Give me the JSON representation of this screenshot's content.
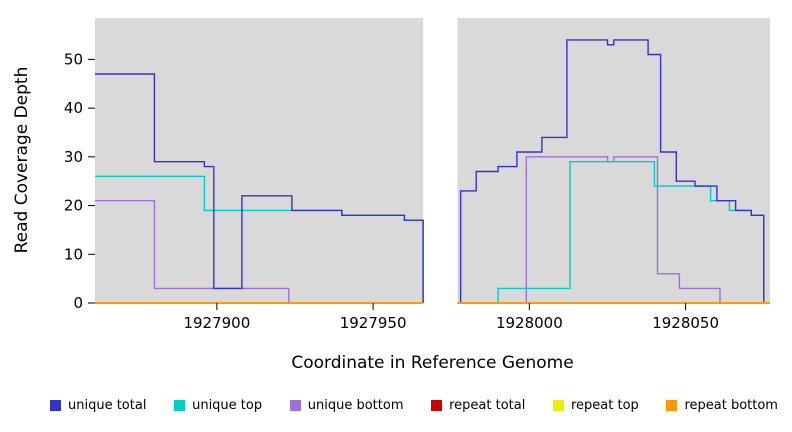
{
  "chart_data": {
    "type": "line",
    "subtype": "step-coverage",
    "title": "",
    "xlabel": "Coordinate in Reference Genome",
    "ylabel": "Read Coverage Depth",
    "x_range": [
      1927861,
      1928077
    ],
    "y_max": 58.5,
    "x_ticks": [
      1927900,
      1927950,
      1928000,
      1928050
    ],
    "y_ticks": [
      0,
      10,
      20,
      30,
      40,
      50
    ],
    "gap_x": [
      1927966,
      1927977
    ],
    "panel_color": "#d9d9d9",
    "grid": false,
    "legend_position": "bottom",
    "series": [
      {
        "key": "unique-bottom",
        "name": "unique bottom",
        "color": "#a070d8",
        "segments": [
          [
            [
              1927861,
              21
            ],
            [
              1927880,
              3
            ],
            [
              1927923,
              0
            ],
            [
              1927966,
              0
            ]
          ],
          [
            [
              1927977,
              0
            ],
            [
              1927999,
              30
            ],
            [
              1928025,
              29
            ],
            [
              1928027,
              30
            ],
            [
              1928041,
              6
            ],
            [
              1928048,
              3
            ],
            [
              1928061,
              0
            ],
            [
              1928075,
              0
            ]
          ]
        ]
      },
      {
        "key": "unique-top",
        "name": "unique top",
        "color": "#00cccc",
        "segments": [
          [
            [
              1927861,
              26
            ],
            [
              1927896,
              19
            ],
            [
              1927940,
              18
            ],
            [
              1927960,
              17
            ],
            [
              1927966,
              0
            ]
          ],
          [
            [
              1927977,
              0
            ],
            [
              1927990,
              3
            ],
            [
              1928013,
              29
            ],
            [
              1928040,
              24
            ],
            [
              1928058,
              21
            ],
            [
              1928064,
              19
            ],
            [
              1928071,
              18
            ],
            [
              1928075,
              0
            ]
          ]
        ]
      },
      {
        "key": "unique-total",
        "name": "unique total",
        "color": "#3333cc",
        "segments": [
          [
            [
              1927861,
              47
            ],
            [
              1927880,
              29
            ],
            [
              1927896,
              28
            ],
            [
              1927899,
              3
            ],
            [
              1927908,
              22
            ],
            [
              1927924,
              19
            ],
            [
              1927940,
              18
            ],
            [
              1927960,
              17
            ],
            [
              1927966,
              0
            ]
          ],
          [
            [
              1927977,
              0
            ],
            [
              1927978,
              23
            ],
            [
              1927983,
              27
            ],
            [
              1927990,
              28
            ],
            [
              1927996,
              31
            ],
            [
              1928004,
              34
            ],
            [
              1928012,
              54
            ],
            [
              1928025,
              53
            ],
            [
              1928027,
              54
            ],
            [
              1928038,
              51
            ],
            [
              1928042,
              31
            ],
            [
              1928047,
              25
            ],
            [
              1928053,
              24
            ],
            [
              1928060,
              21
            ],
            [
              1928066,
              19
            ],
            [
              1928071,
              18
            ],
            [
              1928075,
              0
            ]
          ]
        ]
      },
      {
        "key": "repeat-total",
        "name": "repeat total",
        "color": "#cc0000",
        "segments": [
          [
            [
              1927861,
              0
            ],
            [
              1927966,
              0
            ]
          ],
          [
            [
              1927977,
              0
            ],
            [
              1928077,
              0
            ]
          ]
        ]
      },
      {
        "key": "repeat-top",
        "name": "repeat top",
        "color": "#eeee00",
        "segments": [
          [
            [
              1927861,
              0
            ],
            [
              1927966,
              0
            ]
          ],
          [
            [
              1927977,
              0
            ],
            [
              1928077,
              0
            ]
          ]
        ]
      },
      {
        "key": "repeat-bottom",
        "name": "repeat bottom",
        "color": "#ff9900",
        "segments": [
          [
            [
              1927861,
              0
            ],
            [
              1927966,
              0
            ]
          ],
          [
            [
              1927977,
              0
            ],
            [
              1928077,
              0
            ]
          ]
        ]
      }
    ]
  },
  "legend": {
    "items": [
      {
        "label": "unique total",
        "color": "#3333cc"
      },
      {
        "label": "unique top",
        "color": "#00cccc"
      },
      {
        "label": "unique bottom",
        "color": "#a070d8"
      },
      {
        "label": "repeat total",
        "color": "#cc0000"
      },
      {
        "label": "repeat top",
        "color": "#eeee00"
      },
      {
        "label": "repeat bottom",
        "color": "#ff9900"
      }
    ]
  }
}
